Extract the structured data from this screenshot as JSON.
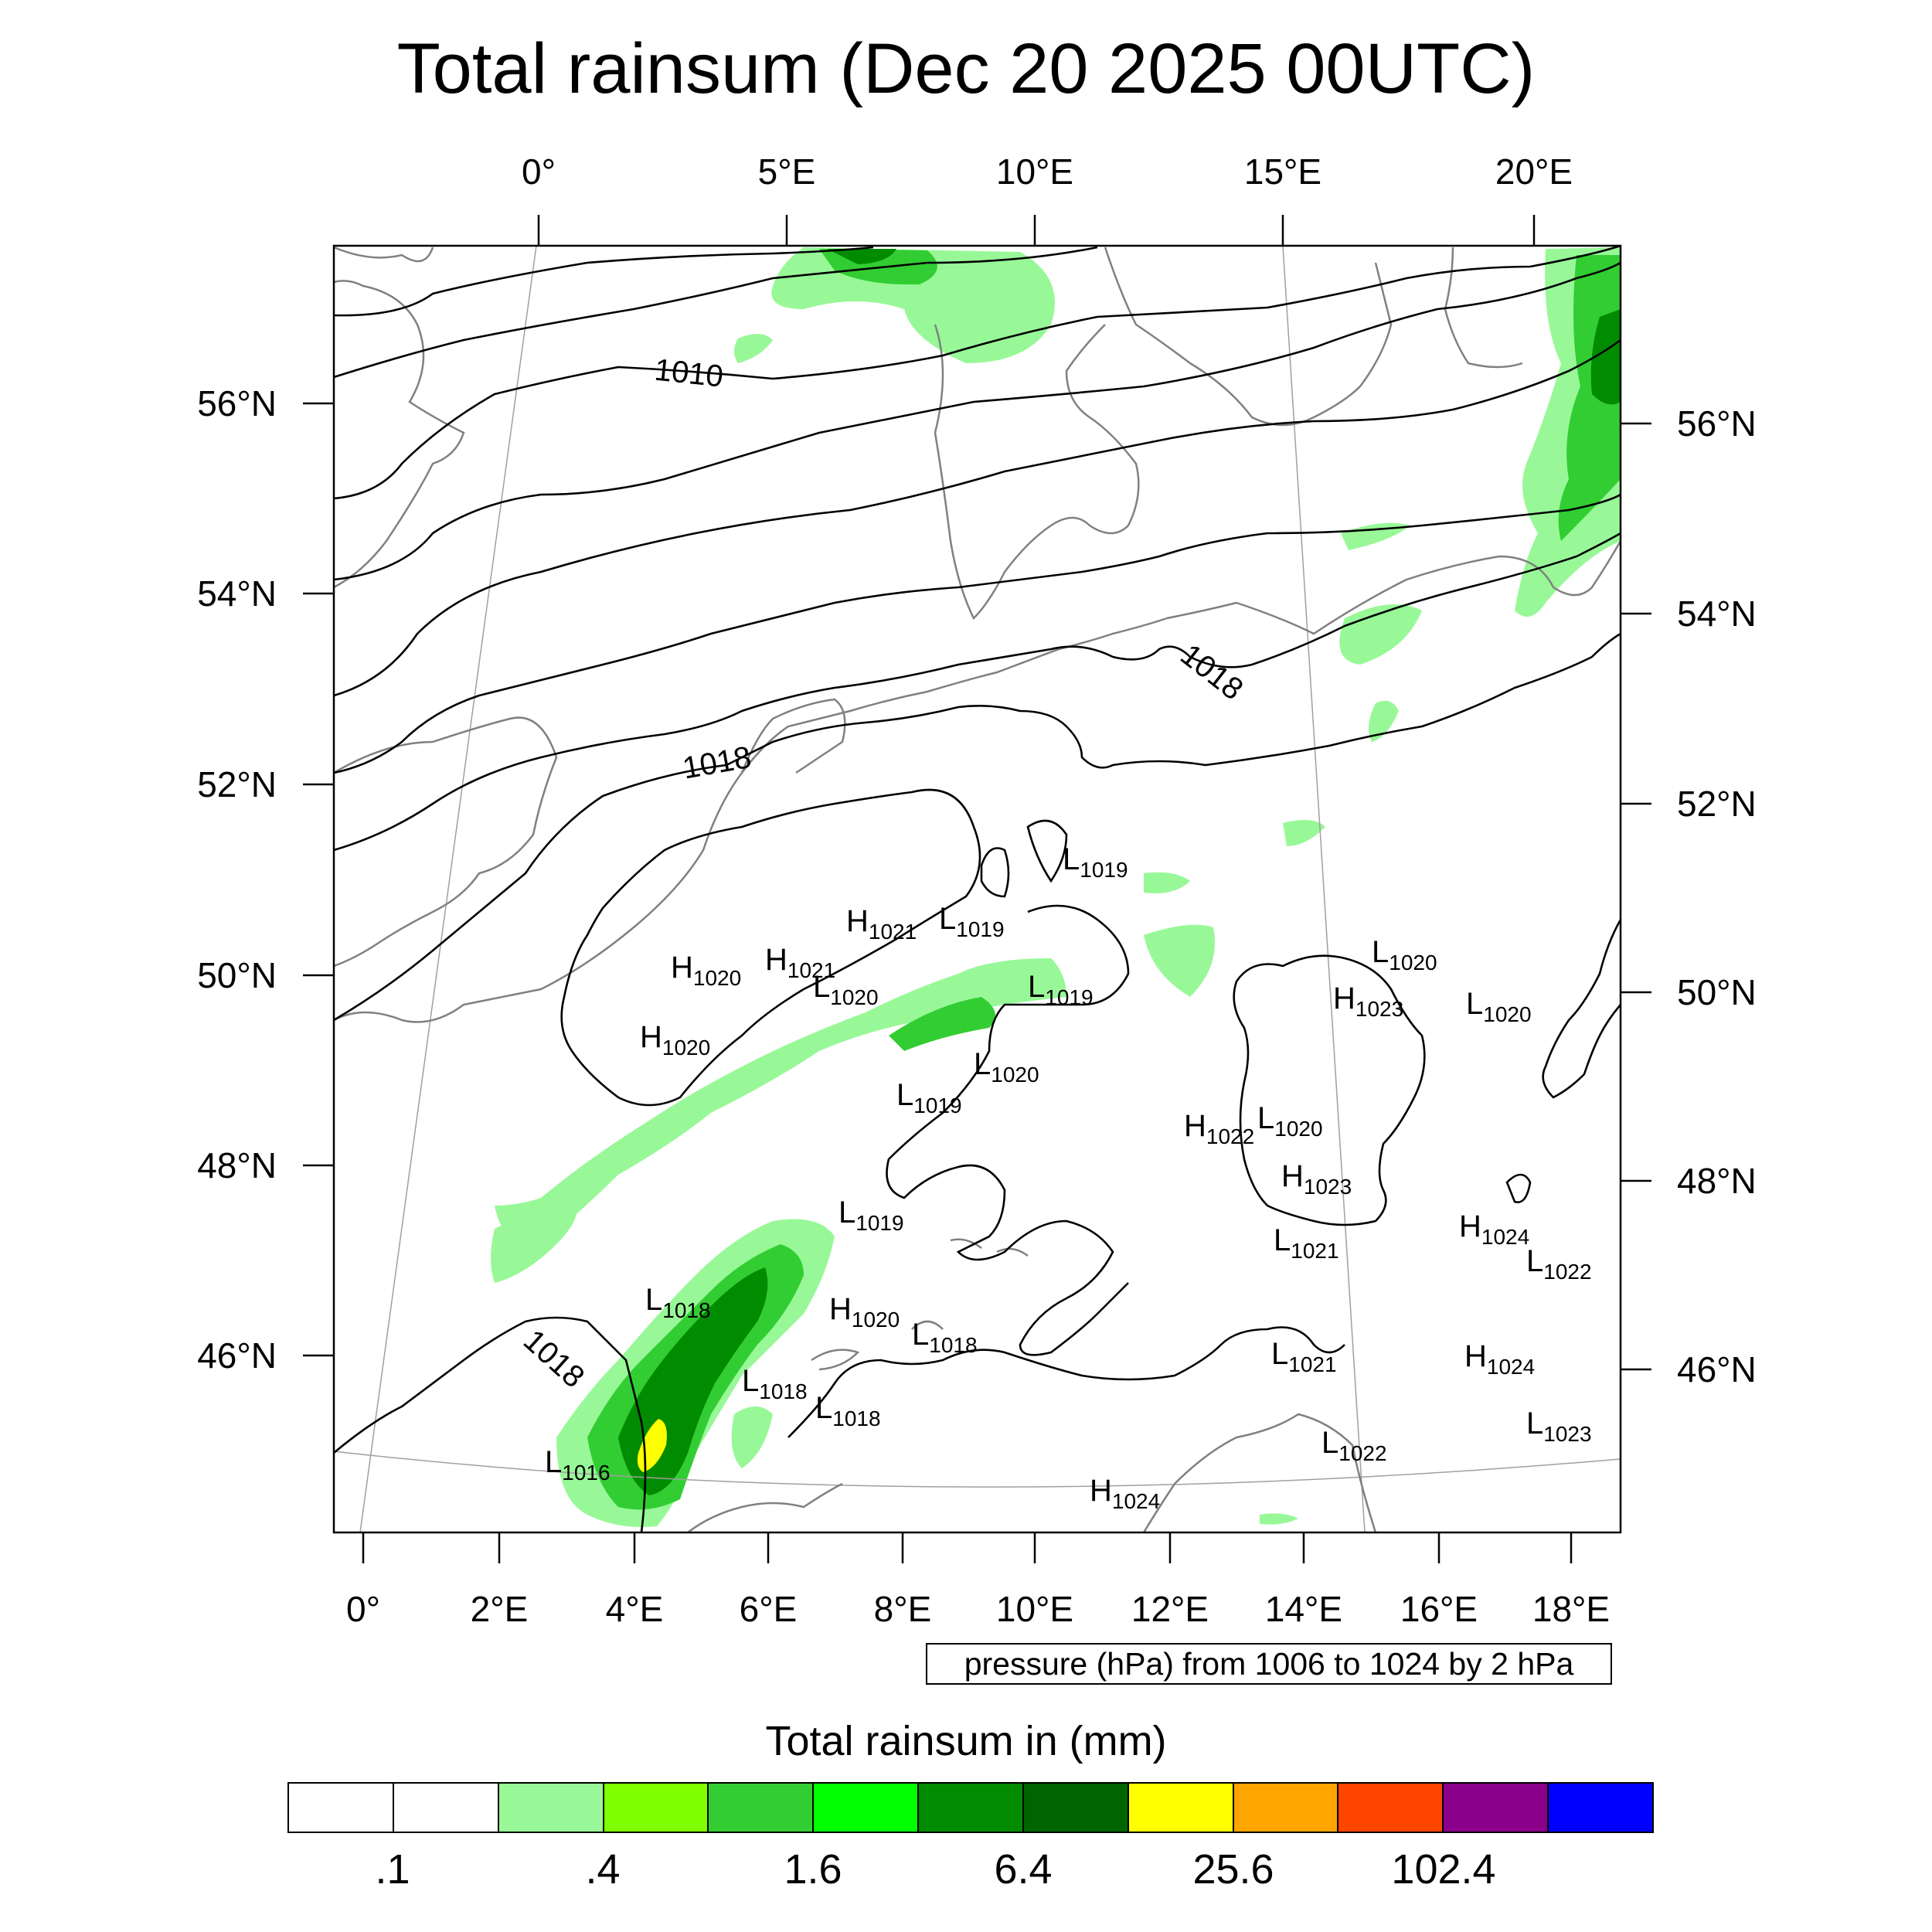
{
  "title": "Total rainsum (Dec 20 2025 00UTC)",
  "top_lon_labels": [
    "0°",
    "5°E",
    "10°E",
    "15°E",
    "20°E"
  ],
  "bottom_lon_labels": [
    "0°",
    "2°E",
    "4°E",
    "6°E",
    "8°E",
    "10°E",
    "12°E",
    "14°E",
    "16°E",
    "18°E"
  ],
  "left_lat_labels": [
    "56°N",
    "54°N",
    "52°N",
    "50°N",
    "48°N",
    "46°N"
  ],
  "right_lat_labels": [
    "56°N",
    "54°N",
    "52°N",
    "50°N",
    "48°N",
    "46°N"
  ],
  "isobar_labels": [
    "1010",
    "1018",
    "1018",
    "1018"
  ],
  "pressure_centers": [
    {
      "type": "L",
      "value": "1019"
    },
    {
      "type": "H",
      "value": "1021"
    },
    {
      "type": "L",
      "value": "1019"
    },
    {
      "type": "H",
      "value": "1020"
    },
    {
      "type": "H",
      "value": "1021"
    },
    {
      "type": "L",
      "value": "1020"
    },
    {
      "type": "L",
      "value": "1019"
    },
    {
      "type": "H",
      "value": "1020"
    },
    {
      "type": "L",
      "value": "1020"
    },
    {
      "type": "L",
      "value": "1019"
    },
    {
      "type": "L",
      "value": "1020"
    },
    {
      "type": "H",
      "value": "1023"
    },
    {
      "type": "L",
      "value": "1020"
    },
    {
      "type": "H",
      "value": "1022"
    },
    {
      "type": "L",
      "value": "1020"
    },
    {
      "type": "H",
      "value": "1023"
    },
    {
      "type": "L",
      "value": "1019"
    },
    {
      "type": "L",
      "value": "1018"
    },
    {
      "type": "H",
      "value": "1020"
    },
    {
      "type": "L",
      "value": "1018"
    },
    {
      "type": "L",
      "value": "1021"
    },
    {
      "type": "H",
      "value": "1024"
    },
    {
      "type": "L",
      "value": "1022"
    },
    {
      "type": "L",
      "value": "1018"
    },
    {
      "type": "L",
      "value": "1018"
    },
    {
      "type": "L",
      "value": "1021"
    },
    {
      "type": "H",
      "value": "1024"
    },
    {
      "type": "L",
      "value": "1016"
    },
    {
      "type": "L",
      "value": "1022"
    },
    {
      "type": "L",
      "value": "1023"
    },
    {
      "type": "H",
      "value": "1024"
    }
  ],
  "pressure_note": "pressure (hPa) from 1006 to 1024 by 2 hPa",
  "legend": {
    "title": "Total rainsum in (mm)",
    "colors": [
      "#ffffff",
      "#ffffff",
      "#98f898",
      "#80ff00",
      "#32cd32",
      "#00ff00",
      "#008b00",
      "#006400",
      "#ffff00",
      "#ffa500",
      "#ff4500",
      "#8b008b",
      "#0000ff"
    ],
    "labels": [
      ".1",
      ".4",
      "1.6",
      "6.4",
      "25.6",
      "102.4"
    ]
  },
  "colors": {
    "coastline": "#808080",
    "isobar": "#000000",
    "graticule": "#a0a0a0",
    "rain_light": "#98f898",
    "rain_medium": "#32cd32",
    "rain_heavy": "#008b00",
    "rain_extreme": "#ffff00"
  }
}
